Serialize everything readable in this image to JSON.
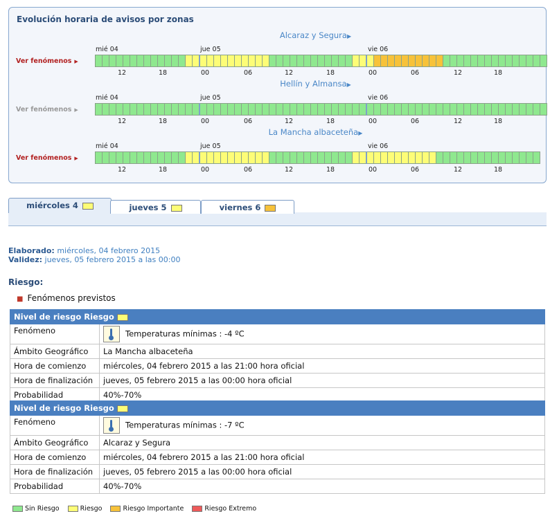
{
  "panel": {
    "title": "Evolución horaria de avisos por zonas",
    "ver_label": "Ver fenómenos",
    "day_labels": [
      "mié 04",
      "jue 05",
      "vie 06"
    ],
    "hour_labels": [
      "12",
      "18",
      "00",
      "06",
      "12",
      "18",
      "00",
      "06",
      "12",
      "18"
    ],
    "zones": [
      {
        "name": "Alcaraz y Segura",
        "ver_active": true,
        "levels": "gggggggggggggyyyyyyyyyyyyggggggggggggyyyooooooooooggggggggggggggg"
      },
      {
        "name": "Hellín y Almansa",
        "ver_active": false,
        "levels": "ggggggggggggggggggggggggggggggggggggggggggggggggggggggggggggggggg"
      },
      {
        "name": "La Mancha albaceteña",
        "ver_active": true,
        "levels": "gggggggggggggyyyyyyyyyyyyggggggggggggyyyyyyyyyyyyggggggggggggggg"
      }
    ]
  },
  "tabs": [
    {
      "label": "miércoles 4",
      "level_color": "#fdfd77",
      "active": true
    },
    {
      "label": "jueves 5",
      "level_color": "#fdfd77",
      "active": false
    },
    {
      "label": "viernes 6",
      "level_color": "#f7c23a",
      "active": false
    }
  ],
  "meta": {
    "elaborado_label": "Elaborado:",
    "elaborado_value": "miércoles, 04 febrero 2015",
    "validez_label": "Validez:",
    "validez_value": "jueves, 05 febrero 2015 a las 00:00"
  },
  "riesgo_label": "Riesgo:",
  "fenomenos_previstos": "Fenómenos previstos",
  "warnings": [
    {
      "header": "Nivel de riesgo Riesgo",
      "rows": [
        {
          "key": "Fenómeno",
          "value": "Temperaturas mínimas : -4 ºC",
          "icon": "thermometer-icon"
        },
        {
          "key": "Ámbito Geográfico",
          "value": "La Mancha albaceteña"
        },
        {
          "key": "Hora de comienzo",
          "value": "miércoles, 04 febrero 2015 a las 21:00 hora oficial"
        },
        {
          "key": "Hora de finalización",
          "value": "jueves, 05 febrero 2015 a las 00:00 hora oficial"
        },
        {
          "key": "Probabilidad",
          "value": "40%-70%"
        }
      ]
    },
    {
      "header": "Nivel de riesgo Riesgo",
      "rows": [
        {
          "key": "Fenómeno",
          "value": "Temperaturas mínimas : -7 ºC",
          "icon": "thermometer-icon"
        },
        {
          "key": "Ámbito Geográfico",
          "value": "Alcaraz y Segura"
        },
        {
          "key": "Hora de comienzo",
          "value": "miércoles, 04 febrero 2015 a las 21:00 hora oficial"
        },
        {
          "key": "Hora de finalización",
          "value": "jueves, 05 febrero 2015 a las 00:00 hora oficial"
        },
        {
          "key": "Probabilidad",
          "value": "40%-70%"
        }
      ]
    }
  ],
  "legend": [
    {
      "label": "Sin Riesgo",
      "color": "#8fe88f"
    },
    {
      "label": "Riesgo",
      "color": "#fdfd77"
    },
    {
      "label": "Riesgo Importante",
      "color": "#f7c23a"
    },
    {
      "label": "Riesgo Extremo",
      "color": "#ee5a5a"
    }
  ]
}
